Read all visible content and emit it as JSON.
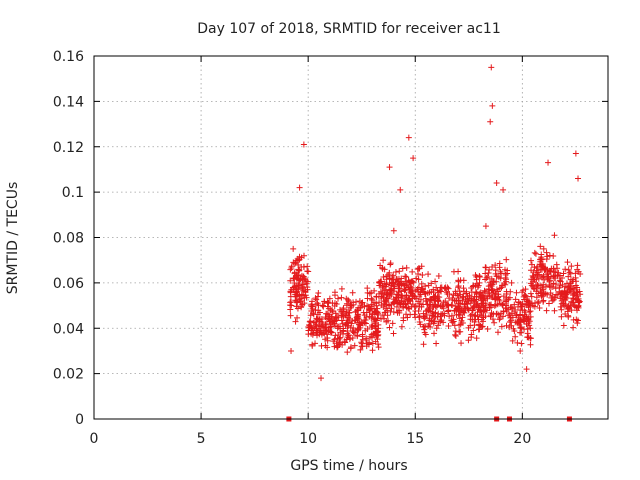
{
  "chart_data": {
    "type": "scatter",
    "title": "Day 107 of 2018, SRMTID for receiver ac11",
    "xlabel": "GPS time / hours",
    "ylabel": "SRMTID / TECUs",
    "xlim": [
      0,
      24
    ],
    "ylim": [
      0,
      0.16
    ],
    "xticks": [
      "0",
      "5",
      "10",
      "15",
      "20"
    ],
    "xtick_values": [
      0,
      5,
      10,
      15,
      20
    ],
    "yticks": [
      "0",
      "0.02",
      "0.04",
      "0.06",
      "0.08",
      "0.1",
      "0.12",
      "0.14",
      "0.16"
    ],
    "ytick_values": [
      0,
      0.02,
      0.04,
      0.06,
      0.08,
      0.1,
      0.12,
      0.14,
      0.16
    ],
    "grid": true,
    "marker": "plus",
    "color": "#e41a1c",
    "data_start_hour": 9.1,
    "data_end_hour": 22.7,
    "series": [
      {
        "name": "SRMTID",
        "points_sample": [
          [
            9.2,
            0.03
          ],
          [
            9.3,
            0.075
          ],
          [
            9.5,
            0.055
          ],
          [
            9.6,
            0.102
          ],
          [
            9.8,
            0.121
          ],
          [
            10.0,
            0.065
          ],
          [
            10.3,
            0.04
          ],
          [
            10.6,
            0.018
          ],
          [
            11.0,
            0.045
          ],
          [
            11.5,
            0.038
          ],
          [
            12.0,
            0.05
          ],
          [
            12.5,
            0.032
          ],
          [
            13.0,
            0.046
          ],
          [
            13.5,
            0.07
          ],
          [
            13.8,
            0.111
          ],
          [
            14.0,
            0.083
          ],
          [
            14.3,
            0.101
          ],
          [
            14.7,
            0.124
          ],
          [
            14.9,
            0.115
          ],
          [
            15.5,
            0.052
          ],
          [
            16.0,
            0.04
          ],
          [
            16.5,
            0.058
          ],
          [
            17.0,
            0.065
          ],
          [
            17.5,
            0.048
          ],
          [
            18.0,
            0.06
          ],
          [
            18.3,
            0.085
          ],
          [
            18.5,
            0.131
          ],
          [
            18.55,
            0.155
          ],
          [
            18.6,
            0.138
          ],
          [
            18.8,
            0.104
          ],
          [
            19.1,
            0.101
          ],
          [
            19.5,
            0.06
          ],
          [
            19.9,
            0.03
          ],
          [
            20.2,
            0.022
          ],
          [
            20.5,
            0.05
          ],
          [
            21.0,
            0.075
          ],
          [
            21.2,
            0.113
          ],
          [
            21.5,
            0.081
          ],
          [
            22.0,
            0.066
          ],
          [
            22.3,
            0.048
          ],
          [
            22.5,
            0.117
          ],
          [
            22.6,
            0.106
          ],
          [
            22.7,
            0.055
          ]
        ]
      },
      {
        "name": "zero markers",
        "points_sample": [
          [
            9.1,
            0
          ],
          [
            18.8,
            0
          ],
          [
            19.4,
            0
          ],
          [
            22.2,
            0
          ]
        ]
      }
    ]
  }
}
